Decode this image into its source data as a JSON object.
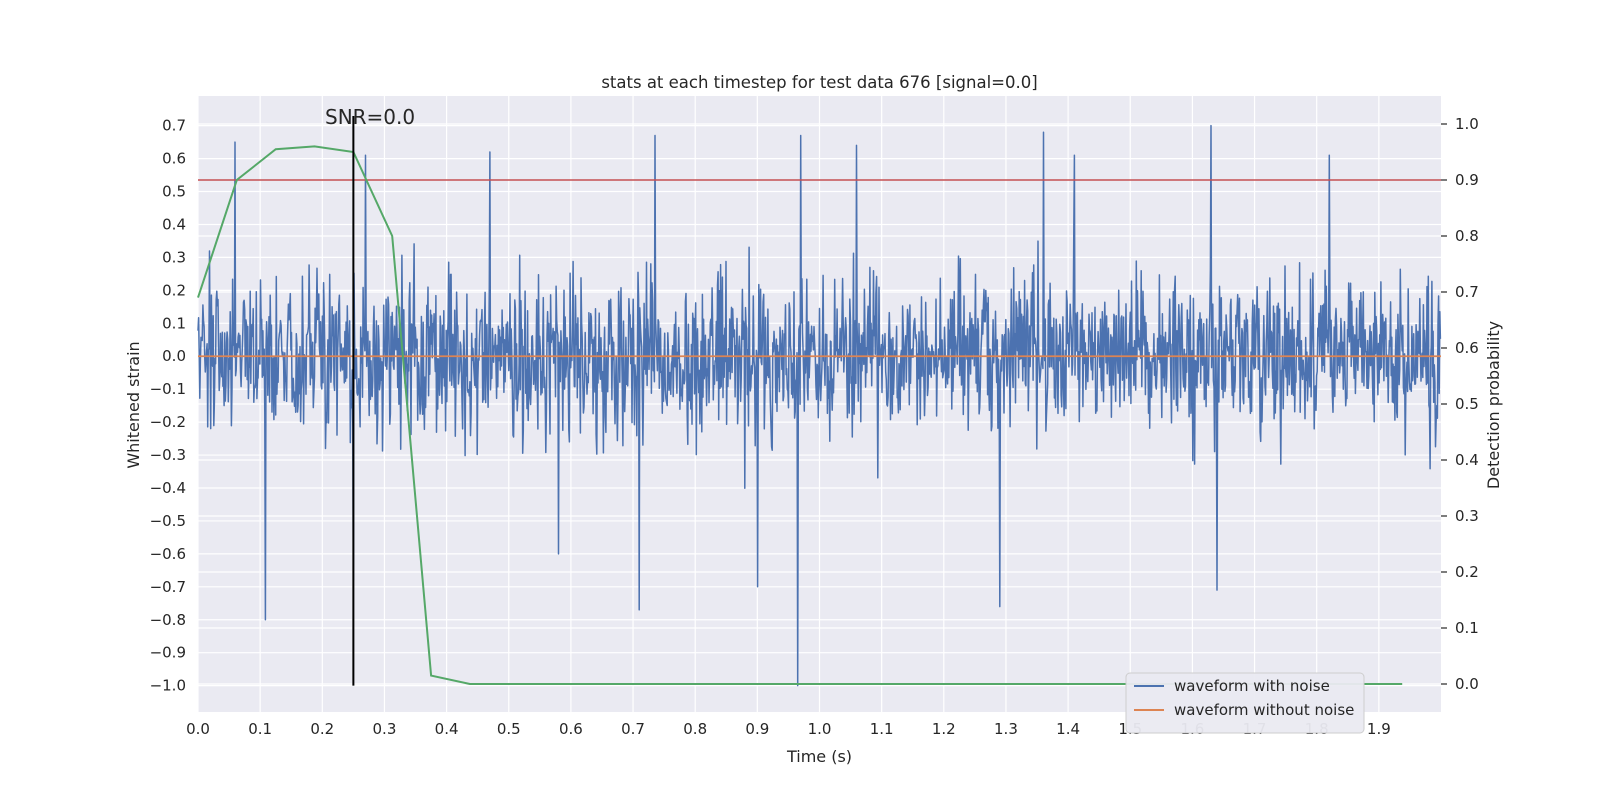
{
  "chart_data": {
    "type": "line",
    "title": "stats at each timestep for test data 676 [signal=0.0]",
    "xlabel": "Time (s)",
    "ylabel_left": "Whitened strain",
    "ylabel_right": "Detection probability",
    "xlim": [
      0.0,
      2.0
    ],
    "ylim_left": [
      -1.08,
      0.79
    ],
    "ylim_right": [
      -0.05,
      1.05
    ],
    "x_ticks": [
      "0.0",
      "0.1",
      "0.2",
      "0.3",
      "0.4",
      "0.5",
      "0.6",
      "0.7",
      "0.8",
      "0.9",
      "1.0",
      "1.1",
      "1.2",
      "1.3",
      "1.4",
      "1.5",
      "1.6",
      "1.7",
      "1.8",
      "1.9"
    ],
    "y_left_ticks": [
      "0.7",
      "0.6",
      "0.5",
      "0.4",
      "0.3",
      "0.2",
      "0.1",
      "0.0",
      "−0.1",
      "−0.2",
      "−0.3",
      "−0.4",
      "−0.5",
      "−0.6",
      "−0.7",
      "−0.8",
      "−0.9",
      "−1.0"
    ],
    "y_right_ticks": [
      "1.0",
      "0.9",
      "0.8",
      "0.7",
      "0.6",
      "0.5",
      "0.4",
      "0.3",
      "0.2",
      "0.1",
      "0.0"
    ],
    "grid": true,
    "legend_position": "bottom-right",
    "annotation": {
      "text": "SNR=0.0",
      "x": 0.25
    },
    "threshold_right": 0.9,
    "series": [
      {
        "name": "waveform with noise",
        "color": "#4c72b0",
        "axis": "left",
        "noise_model": "random whitened strain, amplitude mostly within ±0.4 with spikes",
        "samples": 2048,
        "spikes": [
          {
            "x": 0.06,
            "y": 0.65
          },
          {
            "x": 0.108,
            "y": -0.8
          },
          {
            "x": 0.25,
            "y": -0.68
          },
          {
            "x": 0.27,
            "y": 0.61
          },
          {
            "x": 0.47,
            "y": 0.62
          },
          {
            "x": 0.58,
            "y": -0.6
          },
          {
            "x": 0.71,
            "y": -0.77
          },
          {
            "x": 0.735,
            "y": 0.67
          },
          {
            "x": 0.9,
            "y": -0.7
          },
          {
            "x": 0.965,
            "y": -1.0
          },
          {
            "x": 0.97,
            "y": 0.67
          },
          {
            "x": 1.06,
            "y": 0.64
          },
          {
            "x": 1.29,
            "y": -0.76
          },
          {
            "x": 1.36,
            "y": 0.68
          },
          {
            "x": 1.41,
            "y": 0.61
          },
          {
            "x": 1.63,
            "y": 0.7
          },
          {
            "x": 1.64,
            "y": -0.71
          },
          {
            "x": 1.82,
            "y": 0.61
          }
        ]
      },
      {
        "name": "waveform without noise",
        "color": "#dd8452",
        "axis": "left",
        "x": [
          0.0,
          2.0
        ],
        "y": [
          0.0,
          0.0
        ]
      },
      {
        "name": "",
        "color": "#55a868",
        "axis": "right",
        "x": [
          0.0,
          0.0625,
          0.125,
          0.1875,
          0.25,
          0.3125,
          0.375,
          0.4375,
          0.5,
          0.5625,
          0.625,
          0.6875,
          0.75,
          0.8125,
          0.875,
          0.9375,
          1.0,
          1.0625,
          1.125,
          1.1875,
          1.25,
          1.3125,
          1.375,
          1.4375,
          1.5,
          1.5625,
          1.625,
          1.6875,
          1.75,
          1.8125,
          1.875,
          1.9375
        ],
        "y": [
          0.69,
          0.9,
          0.955,
          0.96,
          0.95,
          0.8,
          0.015,
          0.0,
          0.0,
          0.0,
          0.0,
          0.0,
          0.0,
          0.0,
          0.0,
          0.0,
          0.0,
          0.0,
          0.0,
          0.0,
          0.0,
          0.0,
          0.0,
          0.0,
          0.0,
          0.0,
          0.0,
          0.0,
          0.0,
          0.0,
          0.0,
          0.0
        ]
      }
    ],
    "colors": {
      "plot_background": "#eaeaf2",
      "grid": "#ffffff",
      "threshold": "#c44e52",
      "annotation_line": "#000000"
    }
  }
}
